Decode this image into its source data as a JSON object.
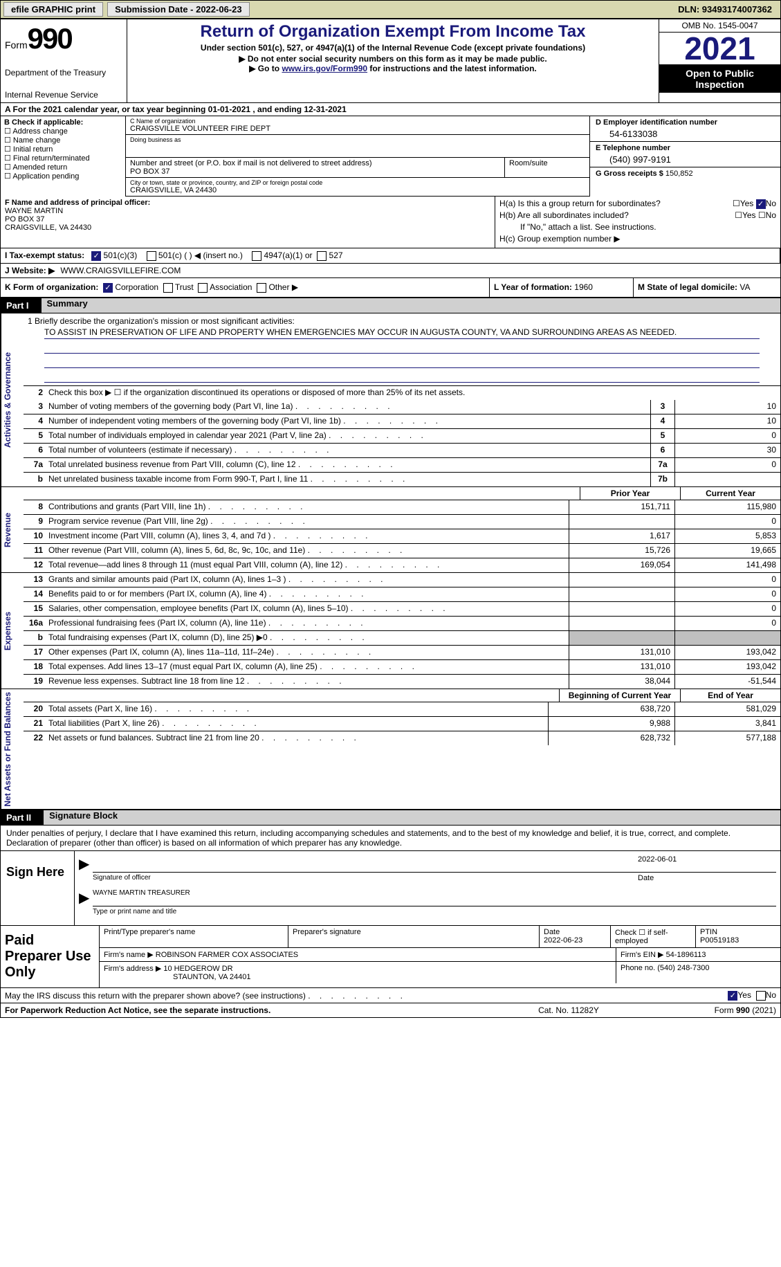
{
  "top": {
    "efile_btn": "efile GRAPHIC print",
    "submission_label": "Submission Date - 2022-06-23",
    "dln": "DLN: 93493174007362"
  },
  "header": {
    "form_word": "Form",
    "form_number": "990",
    "dept": "Department of the Treasury",
    "irs": "Internal Revenue Service",
    "title": "Return of Organization Exempt From Income Tax",
    "subtitle": "Under section 501(c), 527, or 4947(a)(1) of the Internal Revenue Code (except private foundations)",
    "notice1": "▶ Do not enter social security numbers on this form as it may be made public.",
    "notice2_pre": "▶ Go to ",
    "notice2_link": "www.irs.gov/Form990",
    "notice2_post": " for instructions and the latest information.",
    "omb": "OMB No. 1545-0047",
    "year": "2021",
    "open_public": "Open to Public Inspection"
  },
  "period": "A For the 2021 calendar year, or tax year beginning 01-01-2021    , and ending 12-31-2021",
  "section_b": {
    "header": "B Check if applicable:",
    "items": [
      "Address change",
      "Name change",
      "Initial return",
      "Final return/terminated",
      "Amended return",
      "Application pending"
    ]
  },
  "section_c": {
    "name_label": "C Name of organization",
    "name": "CRAIGSVILLE VOLUNTEER FIRE DEPT",
    "dba_label": "Doing business as",
    "dba": "",
    "street_label": "Number and street (or P.O. box if mail is not delivered to street address)",
    "street": "PO BOX 37",
    "room_label": "Room/suite",
    "room": "",
    "city_label": "City or town, state or province, country, and ZIP or foreign postal code",
    "city": "CRAIGSVILLE, VA  24430"
  },
  "section_d": {
    "ein_label": "D Employer identification number",
    "ein": "54-6133038",
    "phone_label": "E Telephone number",
    "phone": "(540) 997-9191",
    "gross_label": "G Gross receipts $",
    "gross": "150,852"
  },
  "section_f": {
    "label": "F Name and address of principal officer:",
    "name": "WAYNE MARTIN",
    "street": "PO BOX 37",
    "city": "CRAIGSVILLE, VA  24430"
  },
  "section_h": {
    "ha_label": "H(a)  Is this a group return for subordinates?",
    "hb_label": "H(b)  Are all subordinates included?",
    "hb_note": "If \"No,\" attach a list. See instructions.",
    "hc_label": "H(c)  Group exemption number ▶",
    "yes": "Yes",
    "no": "No"
  },
  "row_i": {
    "label": "I   Tax-exempt status:",
    "opt1": "501(c)(3)",
    "opt2": "501(c) (  ) ◀ (insert no.)",
    "opt3": "4947(a)(1) or",
    "opt4": "527"
  },
  "row_j": {
    "label": "J   Website: ▶",
    "value": "WWW.CRAIGSVILLEFIRE.COM"
  },
  "row_k": {
    "label": "K Form of organization:",
    "corp": "Corporation",
    "trust": "Trust",
    "assoc": "Association",
    "other": "Other ▶"
  },
  "row_l": {
    "label": "L Year of formation:",
    "value": "1960"
  },
  "row_m": {
    "label": "M State of legal domicile:",
    "value": "VA"
  },
  "part1": {
    "num": "Part I",
    "title": "Summary"
  },
  "summary": {
    "mission_label": "1   Briefly describe the organization's mission or most significant activities:",
    "mission": "TO ASSIST IN PRESERVATION OF LIFE AND PROPERTY WHEN EMERGENCIES MAY OCCUR IN AUGUSTA COUNTY, VA AND SURROUNDING AREAS AS NEEDED.",
    "line2": "Check this box ▶ ☐  if the organization discontinued its operations or disposed of more than 25% of its net assets.",
    "gov_label": "Activities & Governance",
    "rev_label": "Revenue",
    "exp_label": "Expenses",
    "net_label": "Net Assets or Fund Balances",
    "lines_gov": [
      {
        "n": "3",
        "l": "Number of voting members of the governing body (Part VI, line 1a)",
        "box": "3",
        "v": "10"
      },
      {
        "n": "4",
        "l": "Number of independent voting members of the governing body (Part VI, line 1b)",
        "box": "4",
        "v": "10"
      },
      {
        "n": "5",
        "l": "Total number of individuals employed in calendar year 2021 (Part V, line 2a)",
        "box": "5",
        "v": "0"
      },
      {
        "n": "6",
        "l": "Total number of volunteers (estimate if necessary)",
        "box": "6",
        "v": "30"
      },
      {
        "n": "7a",
        "l": "Total unrelated business revenue from Part VIII, column (C), line 12",
        "box": "7a",
        "v": "0"
      },
      {
        "n": "b",
        "l": "Net unrelated business taxable income from Form 990-T, Part I, line 11",
        "box": "7b",
        "v": ""
      }
    ],
    "prior_year_hdr": "Prior Year",
    "current_year_hdr": "Current Year",
    "lines_rev": [
      {
        "n": "8",
        "l": "Contributions and grants (Part VIII, line 1h)",
        "py": "151,711",
        "cy": "115,980"
      },
      {
        "n": "9",
        "l": "Program service revenue (Part VIII, line 2g)",
        "py": "",
        "cy": "0"
      },
      {
        "n": "10",
        "l": "Investment income (Part VIII, column (A), lines 3, 4, and 7d )",
        "py": "1,617",
        "cy": "5,853"
      },
      {
        "n": "11",
        "l": "Other revenue (Part VIII, column (A), lines 5, 6d, 8c, 9c, 10c, and 11e)",
        "py": "15,726",
        "cy": "19,665"
      },
      {
        "n": "12",
        "l": "Total revenue—add lines 8 through 11 (must equal Part VIII, column (A), line 12)",
        "py": "169,054",
        "cy": "141,498"
      }
    ],
    "lines_exp": [
      {
        "n": "13",
        "l": "Grants and similar amounts paid (Part IX, column (A), lines 1–3 )",
        "py": "",
        "cy": "0"
      },
      {
        "n": "14",
        "l": "Benefits paid to or for members (Part IX, column (A), line 4)",
        "py": "",
        "cy": "0"
      },
      {
        "n": "15",
        "l": "Salaries, other compensation, employee benefits (Part IX, column (A), lines 5–10)",
        "py": "",
        "cy": "0"
      },
      {
        "n": "16a",
        "l": "Professional fundraising fees (Part IX, column (A), line 11e)",
        "py": "",
        "cy": "0"
      },
      {
        "n": "b",
        "l": "Total fundraising expenses (Part IX, column (D), line 25) ▶0",
        "py": "SHADED",
        "cy": "SHADED"
      },
      {
        "n": "17",
        "l": "Other expenses (Part IX, column (A), lines 11a–11d, 11f–24e)",
        "py": "131,010",
        "cy": "193,042"
      },
      {
        "n": "18",
        "l": "Total expenses. Add lines 13–17 (must equal Part IX, column (A), line 25)",
        "py": "131,010",
        "cy": "193,042"
      },
      {
        "n": "19",
        "l": "Revenue less expenses. Subtract line 18 from line 12",
        "py": "38,044",
        "cy": "-51,544"
      }
    ],
    "begin_year_hdr": "Beginning of Current Year",
    "end_year_hdr": "End of Year",
    "lines_net": [
      {
        "n": "20",
        "l": "Total assets (Part X, line 16)",
        "py": "638,720",
        "cy": "581,029"
      },
      {
        "n": "21",
        "l": "Total liabilities (Part X, line 26)",
        "py": "9,988",
        "cy": "3,841"
      },
      {
        "n": "22",
        "l": "Net assets or fund balances. Subtract line 21 from line 20",
        "py": "628,732",
        "cy": "577,188"
      }
    ]
  },
  "part2": {
    "num": "Part II",
    "title": "Signature Block"
  },
  "sig": {
    "declare": "Under penalties of perjury, I declare that I have examined this return, including accompanying schedules and statements, and to the best of my knowledge and belief, it is true, correct, and complete. Declaration of preparer (other than officer) is based on all information of which preparer has any knowledge.",
    "sign_here": "Sign Here",
    "sig_officer": "Signature of officer",
    "sig_date": "2022-06-01",
    "date_label": "Date",
    "officer_name": "WAYNE MARTIN  TREASURER",
    "name_title_label": "Type or print name and title"
  },
  "preparer": {
    "label": "Paid Preparer Use Only",
    "print_name_label": "Print/Type preparer's name",
    "print_name": "",
    "sig_label": "Preparer's signature",
    "date_label": "Date",
    "date": "2022-06-23",
    "check_label": "Check ☐ if self-employed",
    "ptin_label": "PTIN",
    "ptin": "P00519183",
    "firm_name_label": "Firm's name     ▶",
    "firm_name": "ROBINSON FARMER COX ASSOCIATES",
    "firm_ein_label": "Firm's EIN ▶",
    "firm_ein": "54-1896113",
    "firm_addr_label": "Firm's address ▶",
    "firm_addr1": "10 HEDGEROW DR",
    "firm_addr2": "STAUNTON, VA  24401",
    "phone_label": "Phone no.",
    "phone": "(540) 248-7300"
  },
  "discuss": {
    "text": "May the IRS discuss this return with the preparer shown above? (see instructions)",
    "yes": "Yes",
    "no": "No"
  },
  "footer": {
    "left": "For Paperwork Reduction Act Notice, see the separate instructions.",
    "center": "Cat. No. 11282Y",
    "right": "Form 990 (2021)"
  }
}
